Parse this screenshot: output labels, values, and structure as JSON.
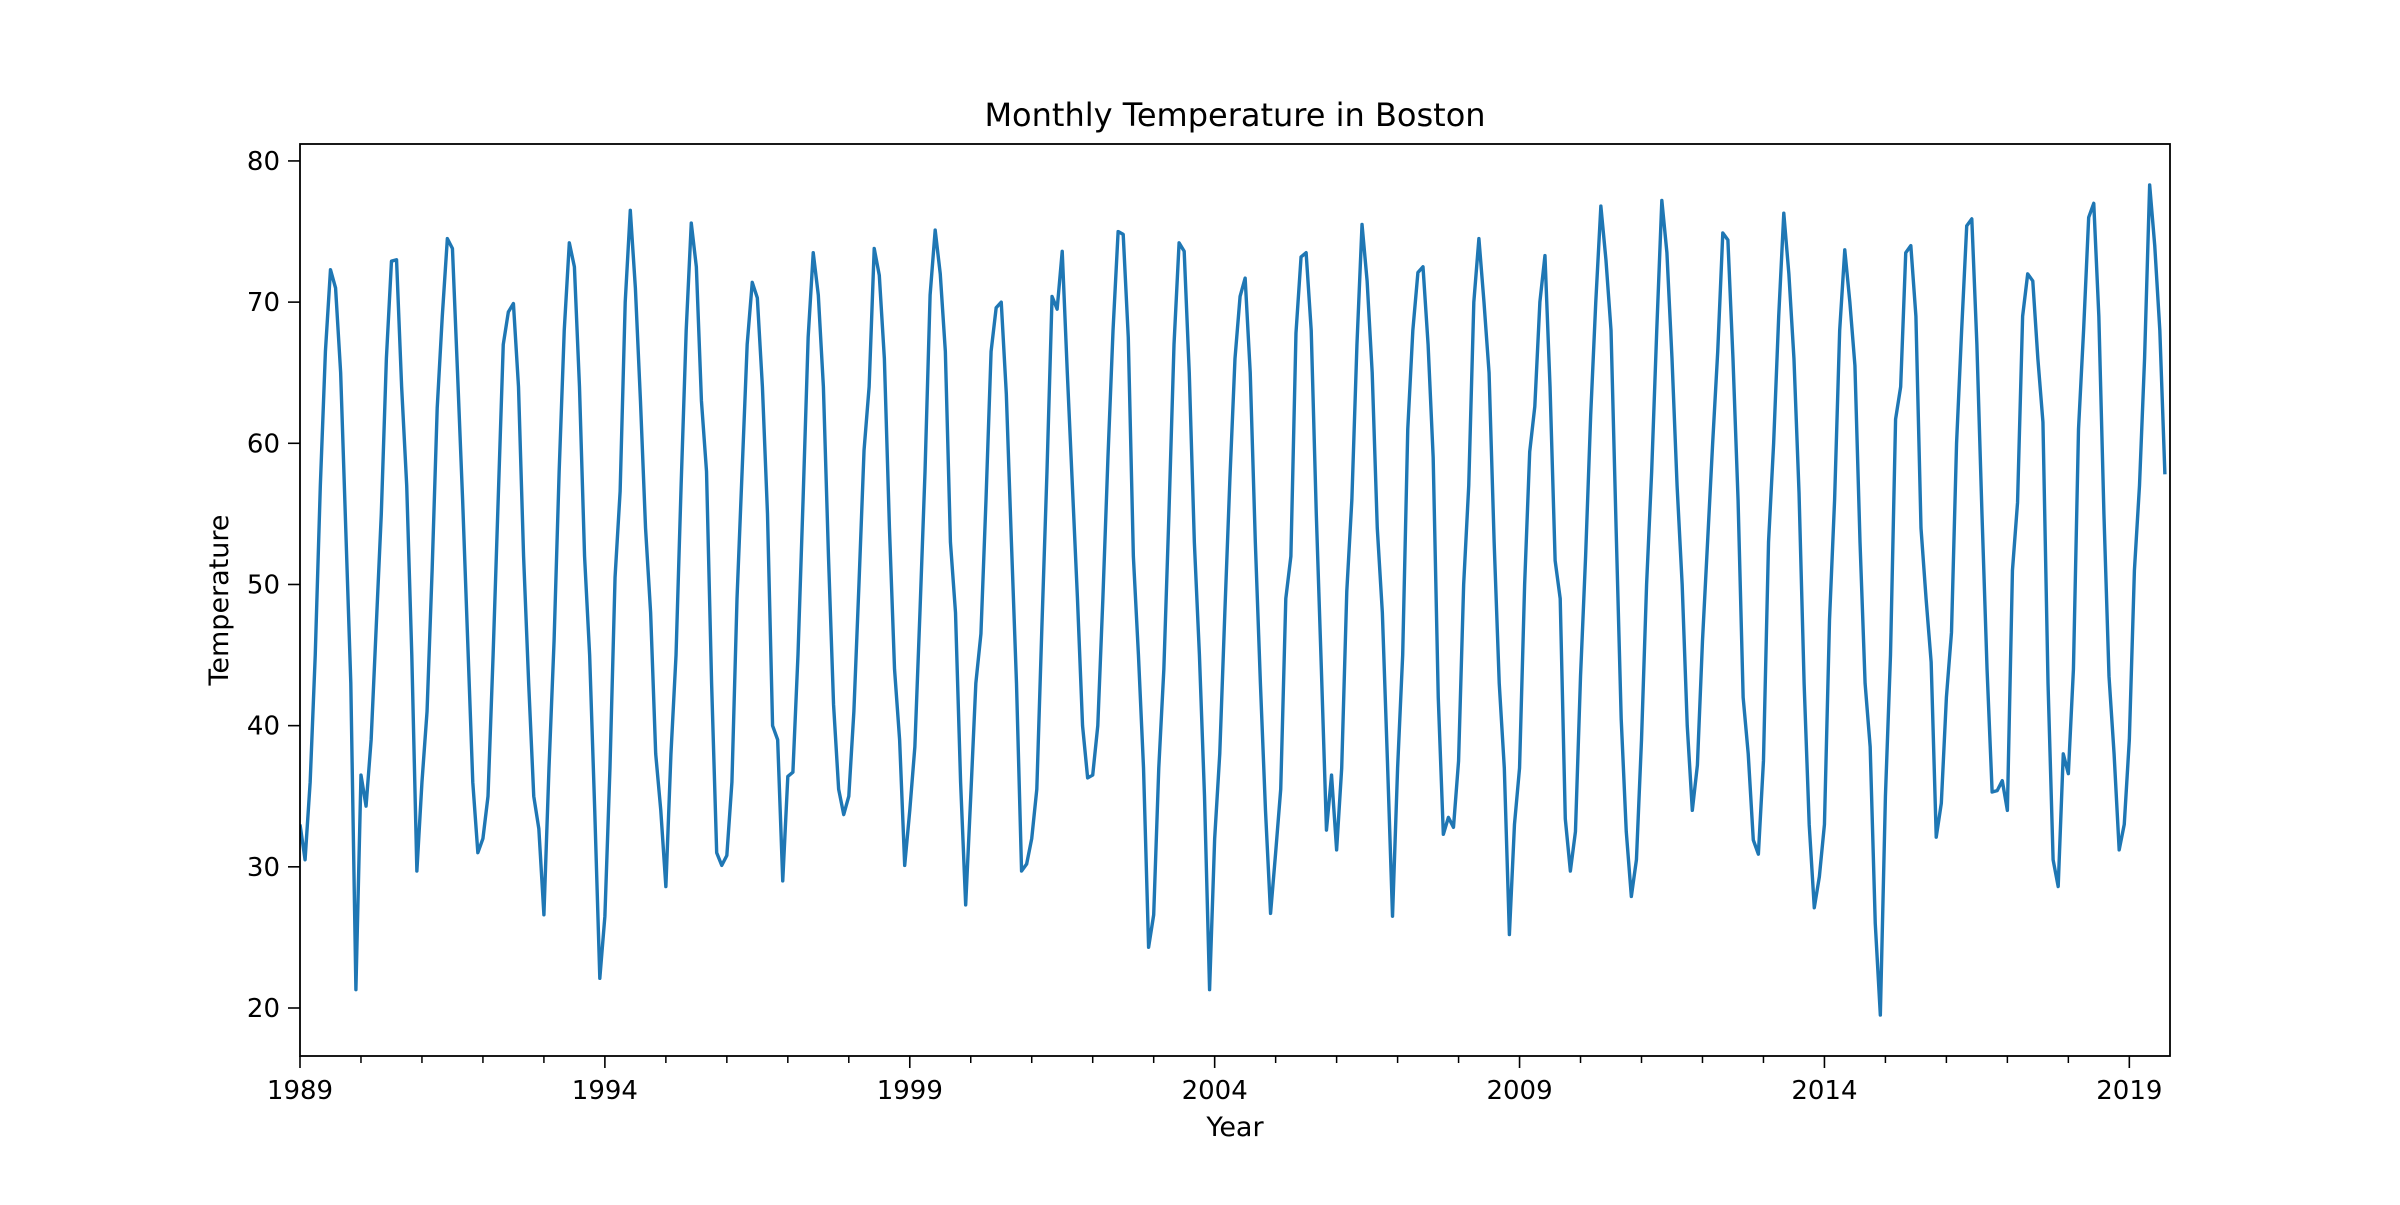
{
  "chart_data": {
    "type": "line",
    "title": "Monthly Temperature in Boston",
    "xlabel": "Year",
    "ylabel": "Temperature",
    "xlim": [
      1989.0,
      2019.667
    ],
    "ylim": [
      16.6,
      81.2
    ],
    "grid": false,
    "legend": "none",
    "x_ticks": [
      1989,
      1994,
      1999,
      2004,
      2009,
      2014,
      2019
    ],
    "x_tick_labels": [
      "1989",
      "1994",
      "1999",
      "2004",
      "2009",
      "2014",
      "2019"
    ],
    "y_ticks": [
      20,
      30,
      40,
      50,
      60,
      70,
      80
    ],
    "y_tick_labels": [
      "20",
      "30",
      "40",
      "50",
      "60",
      "70",
      "80"
    ],
    "x_start": "1989-01",
    "x_step_months": 1,
    "series": [
      {
        "name": "",
        "color": "#1f77b4",
        "values": [
          33.0,
          30.5,
          36.0,
          45.0,
          57.0,
          66.5,
          72.3,
          71.0,
          65.0,
          54.0,
          43.0,
          21.3,
          36.5,
          34.3,
          39.0,
          47.0,
          55.0,
          66.0,
          72.9,
          73.0,
          64.0,
          57.0,
          45.0,
          29.7,
          36.0,
          41.0,
          51.0,
          62.5,
          69.0,
          74.5,
          73.8,
          65.0,
          56.0,
          46.0,
          36.0,
          31.0,
          32.0,
          35.0,
          45.0,
          56.0,
          67.0,
          69.3,
          69.9,
          64.0,
          52.0,
          43.0,
          35.0,
          32.7,
          26.6,
          37.0,
          46.0,
          58.0,
          68.0,
          74.2,
          72.5,
          64.0,
          52.0,
          45.0,
          34.0,
          22.1,
          26.5,
          37.0,
          50.5,
          56.6,
          70.0,
          76.5,
          71.0,
          63.0,
          54.0,
          48.0,
          38.0,
          34.0,
          28.6,
          38.0,
          45.0,
          57.0,
          68.0,
          75.6,
          72.5,
          63.0,
          58.0,
          43.0,
          31.0,
          30.1,
          30.8,
          36.0,
          49.0,
          58.0,
          67.0,
          71.4,
          70.3,
          64.0,
          55.0,
          40.0,
          39.0,
          29.0,
          36.4,
          36.7,
          45.0,
          56.0,
          67.5,
          73.5,
          70.5,
          64.0,
          52.0,
          41.5,
          35.5,
          33.7,
          35.0,
          41.0,
          50.0,
          59.5,
          64.0,
          73.8,
          71.9,
          66.0,
          54.0,
          44.0,
          39.0,
          30.1,
          34.0,
          38.5,
          48.0,
          58.0,
          70.5,
          75.1,
          72.0,
          66.5,
          53.0,
          48.0,
          36.0,
          27.3,
          35.0,
          43.0,
          46.5,
          56.0,
          66.5,
          69.6,
          70.0,
          63.5,
          53.0,
          43.0,
          29.7,
          30.2,
          32.0,
          35.5,
          47.0,
          58.0,
          70.4,
          69.5,
          73.6,
          65.0,
          57.0,
          49.0,
          40.0,
          36.3,
          36.5,
          40.0,
          49.0,
          59.0,
          68.0,
          75.0,
          74.8,
          67.5,
          52.0,
          45.0,
          37.0,
          24.3,
          26.6,
          37.0,
          44.0,
          55.0,
          67.0,
          74.2,
          73.6,
          65.0,
          53.0,
          45.0,
          35.0,
          21.3,
          32.0,
          38.0,
          48.0,
          57.5,
          66.0,
          70.4,
          71.7,
          65.0,
          53.0,
          43.0,
          34.0,
          26.7,
          31.0,
          35.5,
          49.0,
          52.0,
          67.8,
          73.2,
          73.5,
          68.0,
          55.0,
          44.0,
          32.6,
          36.5,
          31.2,
          37.0,
          49.5,
          56.0,
          67.0,
          75.5,
          71.5,
          65.0,
          54.0,
          48.0,
          37.5,
          26.5,
          37.0,
          45.0,
          61.0,
          68.0,
          72.1,
          72.5,
          67.0,
          59.0,
          42.0,
          32.3,
          33.5,
          32.8,
          37.5,
          50.0,
          57.0,
          70.0,
          74.5,
          70.0,
          65.0,
          53.0,
          43.0,
          37.0,
          25.2,
          33.0,
          37.0,
          50.0,
          59.4,
          62.6,
          70.0,
          73.3,
          64.0,
          51.7,
          49.0,
          33.4,
          29.7,
          32.5,
          43.5,
          52.0,
          62.0,
          70.0,
          76.8,
          73.0,
          68.0,
          54.0,
          40.5,
          32.5,
          27.9,
          30.5,
          39.0,
          50.0,
          58.0,
          68.0,
          77.2,
          73.5,
          66.0,
          57.0,
          50.0,
          40.0,
          34.0,
          37.2,
          46.0,
          53.0,
          60.0,
          66.5,
          74.9,
          74.4,
          66.0,
          56.0,
          42.0,
          38.0,
          31.9,
          30.9,
          37.5,
          53.0,
          60.0,
          69.0,
          76.3,
          72.0,
          66.0,
          56.5,
          43.0,
          33.0,
          27.1,
          29.3,
          33.0,
          47.5,
          56.0,
          68.0,
          73.7,
          70.0,
          65.5,
          53.0,
          43.0,
          38.5,
          26.0,
          19.5,
          35.0,
          45.0,
          61.7,
          64.0,
          73.5,
          74.0,
          69.0,
          54.0,
          49.0,
          44.5,
          32.1,
          34.5,
          42.0,
          46.6,
          60.0,
          68.0,
          75.4,
          75.9,
          67.0,
          55.0,
          44.0,
          35.3,
          35.4,
          36.1,
          34.0,
          51.0,
          55.8,
          69.0,
          72.0,
          71.5,
          66.0,
          61.5,
          43.0,
          30.5,
          28.6,
          38.0,
          36.6,
          44.0,
          61.0,
          68.0,
          76.0,
          77.0,
          69.0,
          55.0,
          43.5,
          38.0,
          31.2,
          33.0,
          39.0,
          51.0,
          57.0,
          66.0,
          78.3,
          74.0,
          68.0,
          57.8
        ]
      }
    ]
  }
}
